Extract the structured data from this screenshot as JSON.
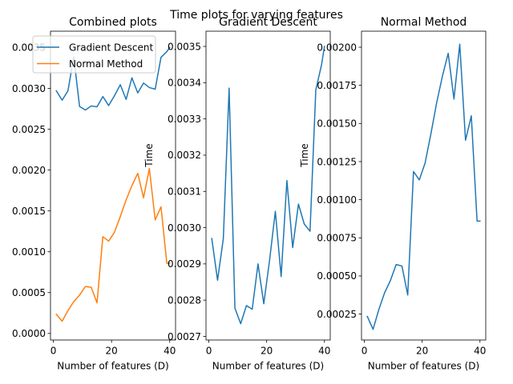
{
  "suptitle": "Time plots for varying features",
  "colors": {
    "gradient": "#1f77b4",
    "normal": "#ff7f0e"
  },
  "chart_data": [
    {
      "type": "line",
      "title": "Combined plots",
      "xlabel": "Number of features (D)",
      "ylabel": "",
      "xlim": [
        -1.0,
        42.0
      ],
      "ylim": [
        -8e-05,
        0.0037
      ],
      "xticks": [
        0,
        20,
        40
      ],
      "yticks": [
        0.0,
        0.0005,
        0.001,
        0.0015,
        0.002,
        0.0025,
        0.003,
        0.0035
      ],
      "ytick_labels": [
        "0.0000",
        "0.0005",
        "0.0010",
        "0.0015",
        "0.0020",
        "0.0025",
        "0.0030",
        "0.0035"
      ],
      "legend": {
        "position": "upper-left",
        "entries": [
          "Gradient Descent",
          "Normal Method"
        ]
      },
      "series": [
        {
          "name": "Gradient Descent",
          "color": "#1f77b4",
          "x": [
            1,
            3,
            5,
            7,
            9,
            11,
            13,
            15,
            17,
            19,
            21,
            23,
            25,
            27,
            29,
            31,
            33,
            35,
            37,
            39,
            40
          ],
          "y": [
            0.00297,
            0.002855,
            0.00297,
            0.003385,
            0.002778,
            0.002735,
            0.002785,
            0.002775,
            0.0029,
            0.00279,
            0.00291,
            0.003045,
            0.002865,
            0.00313,
            0.002945,
            0.003065,
            0.00301,
            0.00299,
            0.00338,
            0.00345,
            0.0035
          ]
        },
        {
          "name": "Normal Method",
          "color": "#ff7f0e",
          "x": [
            1,
            3,
            5,
            7,
            9,
            11,
            13,
            15,
            17,
            19,
            21,
            23,
            25,
            27,
            29,
            31,
            33,
            35,
            37,
            39,
            40
          ],
          "y": [
            0.000235,
            0.00015,
            0.00028,
            0.00039,
            0.00047,
            0.000575,
            0.000565,
            0.000375,
            0.001185,
            0.00113,
            0.00124,
            0.00143,
            0.001635,
            0.00181,
            0.00196,
            0.00166,
            0.00202,
            0.00139,
            0.00155,
            0.00086,
            0.00086
          ]
        }
      ]
    },
    {
      "type": "line",
      "title": "Gradient Descent",
      "xlabel": "Number of features (D)",
      "ylabel": "Time",
      "xlim": [
        -1.0,
        42.0
      ],
      "ylim": [
        0.00269,
        0.003542
      ],
      "xticks": [
        0,
        20,
        40
      ],
      "yticks": [
        0.0027,
        0.0028,
        0.0029,
        0.003,
        0.0031,
        0.0032,
        0.0033,
        0.0034,
        0.0035
      ],
      "ytick_labels": [
        "0.0027",
        "0.0028",
        "0.0029",
        "0.0030",
        "0.0031",
        "0.0032",
        "0.0033",
        "0.0034",
        "0.0035"
      ],
      "series": [
        {
          "name": "Gradient Descent",
          "color": "#1f77b4",
          "x": [
            1,
            3,
            5,
            7,
            9,
            11,
            13,
            15,
            17,
            19,
            21,
            23,
            25,
            27,
            29,
            31,
            33,
            35,
            37,
            39,
            40
          ],
          "y": [
            0.00297,
            0.002855,
            0.00297,
            0.003385,
            0.002778,
            0.002735,
            0.002785,
            0.002775,
            0.0029,
            0.00279,
            0.00291,
            0.003045,
            0.002865,
            0.00313,
            0.002945,
            0.003065,
            0.00301,
            0.00299,
            0.00338,
            0.00345,
            0.0035
          ]
        }
      ]
    },
    {
      "type": "line",
      "title": "Normal Method",
      "xlabel": "Number of features (D)",
      "ylabel": "Time",
      "xlim": [
        -1.0,
        42.0
      ],
      "ylim": [
        8e-05,
        0.002105
      ],
      "xticks": [
        0,
        20,
        40
      ],
      "yticks": [
        0.00025,
        0.0005,
        0.00075,
        0.001,
        0.00125,
        0.0015,
        0.00175,
        0.002
      ],
      "ytick_labels": [
        "0.00025",
        "0.00050",
        "0.00075",
        "0.00100",
        "0.00125",
        "0.00150",
        "0.00175",
        "0.00200"
      ],
      "series": [
        {
          "name": "Normal Method",
          "color": "#1f77b4",
          "x": [
            1,
            3,
            5,
            7,
            9,
            11,
            13,
            15,
            17,
            19,
            21,
            23,
            25,
            27,
            29,
            31,
            33,
            35,
            37,
            39,
            40
          ],
          "y": [
            0.000235,
            0.00015,
            0.00028,
            0.00039,
            0.00047,
            0.000575,
            0.000565,
            0.000375,
            0.001185,
            0.00113,
            0.00124,
            0.00143,
            0.001635,
            0.00181,
            0.00196,
            0.00166,
            0.00202,
            0.00139,
            0.00155,
            0.00086,
            0.00086
          ]
        }
      ]
    }
  ]
}
